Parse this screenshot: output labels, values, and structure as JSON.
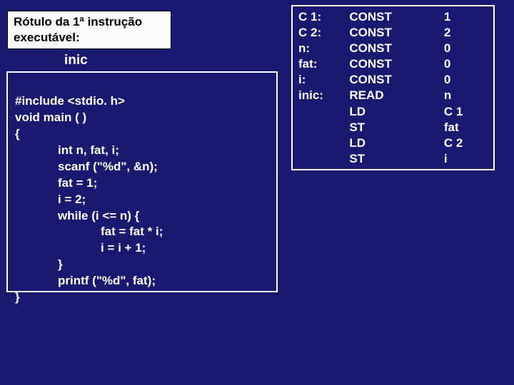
{
  "label_box": {
    "line1": "Rótulo da 1ª instrução",
    "line2": "executável:"
  },
  "inic": "inic",
  "code": {
    "l1": "#include <stdio. h>",
    "l2": "void main ( )",
    "l3": "{",
    "l4": "int n, fat, i;",
    "l5": "scanf (\"%d\", &n);",
    "l6": "fat = 1;",
    "l7": "i = 2;",
    "l8": "while (i <= n) {",
    "l9": "fat = fat * i;",
    "l10": "i = i + 1;",
    "l11": "}",
    "l12": "printf (\"%d\", fat);",
    "l13": "}"
  },
  "asm": {
    "rows": [
      {
        "label": "C 1:",
        "op": "CONST",
        "arg": "1"
      },
      {
        "label": "C 2:",
        "op": "CONST",
        "arg": "2"
      },
      {
        "label": "n:",
        "op": "CONST",
        "arg": "0"
      },
      {
        "label": "fat:",
        "op": "CONST",
        "arg": "0"
      },
      {
        "label": "i:",
        "op": "CONST",
        "arg": "0"
      },
      {
        "label": "inic:",
        "op": "READ",
        "arg": "n"
      },
      {
        "label": "",
        "op": "LD",
        "arg": "C 1"
      },
      {
        "label": "",
        "op": "ST",
        "arg": "fat"
      },
      {
        "label": "",
        "op": "LD",
        "arg": "C 2"
      },
      {
        "label": "",
        "op": "ST",
        "arg": "i"
      }
    ]
  }
}
